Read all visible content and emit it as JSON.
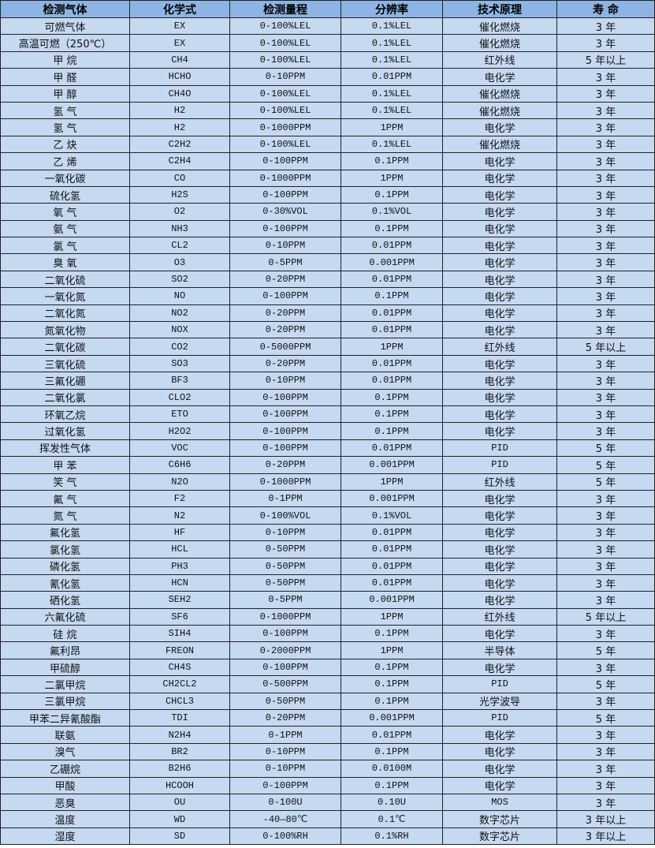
{
  "colors": {
    "header_bg": "#8db4e2",
    "row_bg": "#c5d9f1",
    "border": "#222222"
  },
  "headers": [
    "检测气体",
    "化学式",
    "检测量程",
    "分辨率",
    "技术原理",
    "寿 命"
  ],
  "rows": [
    [
      "可燃气体",
      "EX",
      "0-100%LEL",
      "0.1%LEL",
      "催化燃烧",
      "3 年"
    ],
    [
      "高温可燃（250℃）",
      "EX",
      "0-100%LEL",
      "0.1%LEL",
      "催化燃烧",
      "3 年"
    ],
    [
      "甲 烷",
      "CH4",
      "0-100%LEL",
      "0.1%LEL",
      "红外线",
      "5 年以上"
    ],
    [
      "甲 醛",
      "HCHO",
      "0-10PPM",
      "0.01PPM",
      "电化学",
      "3 年"
    ],
    [
      "甲 醇",
      "CH4O",
      "0-100%LEL",
      "0.1%LEL",
      "催化燃烧",
      "3 年"
    ],
    [
      "氢 气",
      "H2",
      "0-100%LEL",
      "0.1%LEL",
      "催化燃烧",
      "3 年"
    ],
    [
      "氢 气",
      "H2",
      "0-1000PPM",
      "1PPM",
      "电化学",
      "3 年"
    ],
    [
      "乙 炔",
      "C2H2",
      "0-100%LEL",
      "0.1%LEL",
      "催化燃烧",
      "3 年"
    ],
    [
      "乙 烯",
      "C2H4",
      "0-100PPM",
      "0.1PPM",
      "电化学",
      "3 年"
    ],
    [
      "一氧化碳",
      "CO",
      "0-1000PPM",
      "1PPM",
      "电化学",
      "3 年"
    ],
    [
      "硫化氢",
      "H2S",
      "0-100PPM",
      "0.1PPM",
      "电化学",
      "3 年"
    ],
    [
      "氧 气",
      "O2",
      "0-30%VOL",
      "0.1%VOL",
      "电化学",
      "3 年"
    ],
    [
      "氨 气",
      "NH3",
      "0-100PPM",
      "0.1PPM",
      "电化学",
      "3 年"
    ],
    [
      "氯 气",
      "CL2",
      "0-10PPM",
      "0.01PPM",
      "电化学",
      "3 年"
    ],
    [
      "臭 氧",
      "O3",
      "0-5PPM",
      "0.001PPM",
      "电化学",
      "3 年"
    ],
    [
      "二氧化硫",
      "SO2",
      "0-20PPM",
      "0.01PPM",
      "电化学",
      "3 年"
    ],
    [
      "一氧化氮",
      "NO",
      "0-100PPM",
      "0.1PPM",
      "电化学",
      "3 年"
    ],
    [
      "二氧化氮",
      "NO2",
      "0-20PPM",
      "0.01PPM",
      "电化学",
      "3 年"
    ],
    [
      "氮氧化物",
      "NOX",
      "0-20PPM",
      "0.01PPM",
      "电化学",
      "3 年"
    ],
    [
      "二氧化碳",
      "CO2",
      "0-5000PPM",
      "1PPM",
      "红外线",
      "5 年以上"
    ],
    [
      "三氧化硫",
      "SO3",
      "0-20PPM",
      "0.01PPM",
      "电化学",
      "3 年"
    ],
    [
      "三氟化硼",
      "BF3",
      "0-10PPM",
      "0.01PPM",
      "电化学",
      "3 年"
    ],
    [
      "二氧化氯",
      "CLO2",
      "0-100PPM",
      "0.1PPM",
      "电化学",
      "3 年"
    ],
    [
      "环氧乙烷",
      "ETO",
      "0-100PPM",
      "0.1PPM",
      "电化学",
      "3 年"
    ],
    [
      "过氧化氢",
      "H2O2",
      "0-100PPM",
      "0.1PPM",
      "电化学",
      "3 年"
    ],
    [
      "挥发性气体",
      "VOC",
      "0-100PPM",
      "0.01PPM",
      "PID",
      "5 年"
    ],
    [
      "甲 苯",
      "C6H6",
      "0-20PPM",
      "0.001PPM",
      "PID",
      "5 年"
    ],
    [
      "笑 气",
      "N2O",
      "0-1000PPM",
      "1PPM",
      "红外线",
      "5 年"
    ],
    [
      "氟 气",
      "F2",
      "0-1PPM",
      "0.001PPM",
      "电化学",
      "3 年"
    ],
    [
      "氮 气",
      "N2",
      "0-100%VOL",
      "0.1%VOL",
      "电化学",
      "3 年"
    ],
    [
      "氟化氢",
      "HF",
      "0-10PPM",
      "0.01PPM",
      "电化学",
      "3 年"
    ],
    [
      "氯化氢",
      "HCL",
      "0-50PPM",
      "0.01PPM",
      "电化学",
      "3 年"
    ],
    [
      "磷化氢",
      "PH3",
      "0-50PPM",
      "0.01PPM",
      "电化学",
      "3 年"
    ],
    [
      "氰化氢",
      "HCN",
      "0-50PPM",
      "0.01PPM",
      "电化学",
      "3 年"
    ],
    [
      "硒化氢",
      "SEH2",
      "0-5PPM",
      "0.001PPM",
      "电化学",
      "3 年"
    ],
    [
      "六氟化硫",
      "SF6",
      "0-1000PPM",
      "1PPM",
      "红外线",
      "5 年以上"
    ],
    [
      "硅 烷",
      "SIH4",
      "0-100PPM",
      "0.1PPM",
      "电化学",
      "3 年"
    ],
    [
      "氟利昂",
      "FREON",
      "0-2000PPM",
      "1PPM",
      "半导体",
      "5 年"
    ],
    [
      "甲硫醇",
      "CH4S",
      "0-100PPM",
      "0.1PPM",
      "电化学",
      "3 年"
    ],
    [
      "二氯甲烷",
      "CH2CL2",
      "0-500PPM",
      "0.1PPM",
      "PID",
      "5 年"
    ],
    [
      "三氯甲烷",
      "CHCL3",
      "0-50PPM",
      "0.1PPM",
      "光学波导",
      "3 年"
    ],
    [
      "甲苯二异氰酸酯",
      "TDI",
      "0-20PPM",
      "0.001PPM",
      "PID",
      "5 年"
    ],
    [
      "联氨",
      "N2H4",
      "0-1PPM",
      "0.01PPM",
      "电化学",
      "3 年"
    ],
    [
      "溴气",
      "BR2",
      "0-10PPM",
      "0.1PPM",
      "电化学",
      "3 年"
    ],
    [
      "乙硼烷",
      "B2H6",
      "0-10PPM",
      "0.0100M",
      "电化学",
      "3 年"
    ],
    [
      "甲酸",
      "HCOOH",
      "0-100PPM",
      "0.1PPM",
      "电化学",
      "3 年"
    ],
    [
      "恶臭",
      "OU",
      "0-100U",
      "0.10U",
      "MOS",
      "3 年"
    ],
    [
      "温度",
      "WD",
      "-40—80℃",
      "0.1℃",
      "数字芯片",
      "3 年以上"
    ],
    [
      "湿度",
      "SD",
      "0-100%RH",
      "0.1%RH",
      "数字芯片",
      "3 年以上"
    ]
  ]
}
